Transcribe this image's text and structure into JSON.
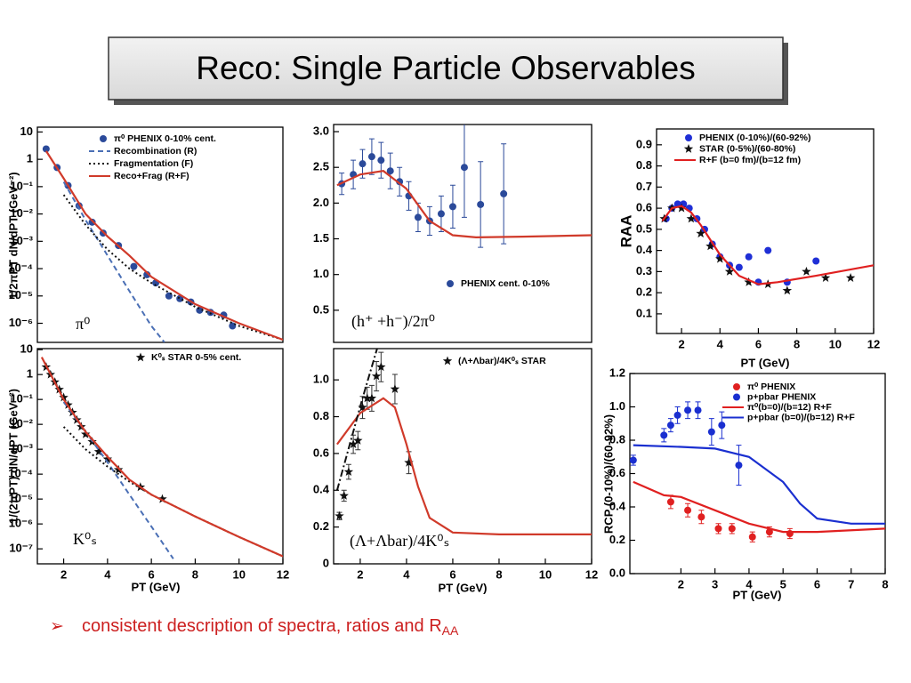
{
  "title": "Reco: Single Particle Observables",
  "bullet": {
    "text": "consistent description of spectra, ratios and R",
    "subscript": "AA"
  },
  "chart_data": [
    {
      "type": "scatter",
      "log": true,
      "xlim": [
        0.8,
        12
      ],
      "ylim": [
        2e-07,
        15
      ],
      "ylabel": "1/2πPT dN/dPT (GeV⁻²)",
      "yticks": [
        10,
        1,
        {
          "value": 0.1,
          "label": "10⁻¹"
        },
        {
          "value": 0.01,
          "label": "10⁻²"
        },
        {
          "value": 0.001,
          "label": "10⁻³"
        },
        {
          "value": 0.0001,
          "label": "10⁻⁴"
        },
        {
          "value": 1e-05,
          "label": "10⁻⁵"
        },
        {
          "value": 1e-06,
          "label": "10⁻⁶"
        }
      ],
      "annotations": [
        "π⁰"
      ],
      "series": [
        {
          "name": "π⁰ PHENIX 0-10% cent.",
          "color": "#2b4a9a",
          "style": "marker",
          "x": [
            1.2,
            1.7,
            2.2,
            2.7,
            3.3,
            3.8,
            4.5,
            5.2,
            5.8,
            6.2,
            6.8,
            7.3,
            7.8,
            8.2,
            8.7,
            9.3,
            9.7
          ],
          "values": [
            2.4,
            0.5,
            0.11,
            0.02,
            0.005,
            0.002,
            0.0007,
            0.00012,
            6e-05,
            3e-05,
            1e-05,
            8e-06,
            6e-06,
            3e-06,
            2.5e-06,
            2e-06,
            8e-07
          ]
        },
        {
          "name": "Recombination (R)",
          "color": "#4a6fb5",
          "style": "dash",
          "x": [
            2,
            3,
            4,
            5,
            6,
            6.6
          ],
          "values": [
            0.15,
            0.006,
            0.0003,
            1.5e-05,
            8e-07,
            2e-07
          ]
        },
        {
          "name": "Fragmentation (F)",
          "color": "#111111",
          "style": "dot",
          "x": [
            2,
            3,
            4,
            5,
            6,
            8,
            10,
            12
          ],
          "values": [
            0.05,
            0.004,
            0.0005,
            0.0001,
            3e-05,
            4e-06,
            8e-07,
            2.5e-07
          ]
        },
        {
          "name": "Reco+Frag (R+F)",
          "color": "#d03a2a",
          "style": "line",
          "x": [
            1.2,
            2,
            3,
            4,
            5,
            6,
            8,
            10,
            12
          ],
          "values": [
            2,
            0.2,
            0.01,
            0.0015,
            0.0003,
            5e-05,
            5e-06,
            1e-06,
            2.5e-07
          ]
        }
      ]
    },
    {
      "type": "scatter",
      "xlim": [
        0.85,
        12
      ],
      "ylim": [
        0.05,
        3.1
      ],
      "yticks": [
        {
          "value": 3,
          "label": "3.0"
        },
        2.5,
        {
          "value": 2,
          "label": "2.0"
        },
        1.5,
        {
          "value": 1,
          "label": "1.0"
        },
        0.5
      ],
      "annotations": [
        "(h⁺ +h⁻)/2π⁰"
      ],
      "series": [
        {
          "name": "PHENIX cent. 0-10%",
          "color": "#2b4a9a",
          "style": "marker",
          "x": [
            1.2,
            1.7,
            2.1,
            2.5,
            2.9,
            3.3,
            3.7,
            4.1,
            4.5,
            5,
            5.5,
            6,
            6.5,
            7.2,
            8.2
          ],
          "values": [
            2.27,
            2.4,
            2.55,
            2.65,
            2.6,
            2.45,
            2.3,
            2.1,
            1.8,
            1.75,
            1.85,
            1.95,
            2.5,
            1.98,
            2.13
          ],
          "errors": [
            0.15,
            0.2,
            0.2,
            0.25,
            0.25,
            0.25,
            0.2,
            0.2,
            0.2,
            0.2,
            0.25,
            0.3,
            0.7,
            0.6,
            0.7
          ]
        },
        {
          "color": "#d03a2a",
          "style": "line",
          "x": [
            1,
            2,
            3,
            4,
            5,
            6,
            7,
            9,
            12
          ],
          "values": [
            2.25,
            2.4,
            2.45,
            2.2,
            1.75,
            1.55,
            1.52,
            1.53,
            1.55
          ]
        }
      ]
    },
    {
      "type": "scatter",
      "xlim": [
        0.7,
        12
      ],
      "ylim": [
        0.007,
        0.975
      ],
      "xlabel": "PT (GeV)",
      "ylabel": "RAA",
      "xticks": [
        2,
        4,
        6,
        8,
        10,
        12
      ],
      "yticks": [
        0.9,
        0.8,
        0.7,
        0.6,
        0.5,
        0.4,
        0.3,
        0.2,
        0.1
      ],
      "series": [
        {
          "name": "PHENIX (0-10%)/(60-92%)",
          "color": "#1f2fd6",
          "style": "marker",
          "x": [
            1.2,
            1.5,
            1.8,
            2.1,
            2.4,
            2.8,
            3.2,
            3.6,
            4,
            4.5,
            5,
            5.5,
            6,
            6.5,
            7.5,
            9
          ],
          "values": [
            0.55,
            0.6,
            0.62,
            0.62,
            0.6,
            0.55,
            0.5,
            0.43,
            0.37,
            0.33,
            0.32,
            0.37,
            0.25,
            0.4,
            0.25,
            0.35
          ]
        },
        {
          "name": "STAR (0-5%)/(60-80%)",
          "color": "#111111",
          "style": "star",
          "x": [
            1.1,
            1.5,
            2,
            2.5,
            3,
            3.5,
            4,
            4.5,
            5.5,
            6.5,
            7.5,
            8.5,
            9.5,
            10.8
          ],
          "values": [
            0.55,
            0.6,
            0.6,
            0.55,
            0.48,
            0.42,
            0.36,
            0.3,
            0.25,
            0.24,
            0.21,
            0.3,
            0.27,
            0.27
          ]
        },
        {
          "name": "R+F (b=0 fm)/(b=12 fm)",
          "color": "#e02020",
          "style": "line",
          "x": [
            1,
            1.5,
            2,
            2.5,
            3,
            4,
            5,
            6,
            7,
            9,
            12
          ],
          "values": [
            0.54,
            0.6,
            0.61,
            0.58,
            0.52,
            0.38,
            0.28,
            0.24,
            0.25,
            0.28,
            0.33
          ]
        }
      ]
    },
    {
      "type": "scatter",
      "log": true,
      "xlim": [
        0.8,
        12
      ],
      "ylim": [
        2.5e-08,
        11
      ],
      "xlabel": "PT (GeV)",
      "ylabel": "1/(2πPT) dN/dPT (GeV⁻²)",
      "xticks": [
        2,
        4,
        6,
        8,
        10,
        12
      ],
      "yticks": [
        10,
        1,
        {
          "value": 0.1,
          "label": "10⁻¹"
        },
        {
          "value": 0.01,
          "label": "10⁻²"
        },
        {
          "value": 0.001,
          "label": "10⁻³"
        },
        {
          "value": 0.0001,
          "label": "10⁻⁴"
        },
        {
          "value": 1e-05,
          "label": "10⁻⁵"
        },
        {
          "value": 1e-06,
          "label": "10⁻⁶"
        },
        {
          "value": 1e-07,
          "label": "10⁻⁷"
        }
      ],
      "annotations": [
        "K⁰ₛ"
      ],
      "series": [
        {
          "name": "K⁰ₛ STAR 0-5% cent.",
          "color": "#111111",
          "style": "star",
          "x": [
            1.2,
            1.4,
            1.6,
            1.8,
            2,
            2.2,
            2.4,
            2.6,
            2.8,
            3,
            3.3,
            3.6,
            4,
            4.5,
            5.5,
            6.5
          ],
          "values": [
            2,
            1,
            0.5,
            0.25,
            0.12,
            0.06,
            0.03,
            0.015,
            0.008,
            0.004,
            0.002,
            0.0008,
            0.0004,
            0.00015,
            3e-05,
            1e-05
          ]
        },
        {
          "color": "#4a6fb5",
          "style": "dash",
          "x": [
            2,
            3,
            4,
            5,
            6,
            7
          ],
          "values": [
            0.08,
            0.005,
            0.0003,
            1.5e-05,
            8e-07,
            4e-08
          ]
        },
        {
          "color": "#111111",
          "style": "dot",
          "x": [
            2,
            3,
            4,
            5,
            6,
            8,
            10,
            12
          ],
          "values": [
            0.008,
            0.001,
            0.0002,
            5e-05,
            1.5e-05,
            2e-06,
            3e-07,
            5e-08
          ]
        },
        {
          "color": "#d03a2a",
          "style": "line",
          "x": [
            1,
            2,
            3,
            4,
            5,
            6,
            8,
            10,
            12
          ],
          "values": [
            5,
            0.1,
            0.005,
            0.0005,
            6e-05,
            1.5e-05,
            2e-06,
            3e-07,
            5e-08
          ]
        }
      ]
    },
    {
      "type": "scatter",
      "xlim": [
        0.85,
        12
      ],
      "ylim": [
        0,
        1.17
      ],
      "xlabel": "PT (GeV)",
      "xticks": [
        2,
        4,
        6,
        8,
        10,
        12
      ],
      "yticks": [
        {
          "value": 1,
          "label": "1.0"
        },
        0.8,
        0.6,
        0.4,
        0.2,
        0
      ],
      "annotations": [
        "(Λ+Λbar)/4K⁰ₛ"
      ],
      "series": [
        {
          "name": "(Λ+Λbar)/4K⁰ₛ STAR",
          "color": "#111111",
          "style": "star",
          "x": [
            1.1,
            1.3,
            1.5,
            1.7,
            1.9,
            2.1,
            2.3,
            2.5,
            2.7,
            2.9,
            3.5,
            4.1
          ],
          "values": [
            0.26,
            0.37,
            0.5,
            0.65,
            0.67,
            0.85,
            0.9,
            0.9,
            1.02,
            1.07,
            0.95,
            0.55
          ],
          "errors": [
            0.02,
            0.03,
            0.04,
            0.05,
            0.05,
            0.06,
            0.06,
            0.07,
            0.08,
            0.08,
            0.08,
            0.06
          ]
        },
        {
          "color": "#d03a2a",
          "style": "line",
          "x": [
            1,
            2,
            3,
            3.5,
            4,
            4.5,
            5,
            6,
            8,
            12
          ],
          "values": [
            0.65,
            0.82,
            0.9,
            0.85,
            0.65,
            0.42,
            0.25,
            0.17,
            0.16,
            0.16
          ]
        },
        {
          "color": "#111111",
          "style": "dashdot",
          "x": [
            1,
            2.1,
            2.8
          ],
          "values": [
            0.4,
            0.9,
            1.2
          ]
        }
      ]
    },
    {
      "type": "scatter",
      "xlim": [
        0.5,
        8
      ],
      "ylim": [
        0,
        1.2
      ],
      "xlabel": "PT (GeV)",
      "ylabel": "RCP (0-10%)/(60-92%)",
      "xticks": [
        2,
        3,
        4,
        5,
        6,
        7,
        8
      ],
      "yticks": [
        1.2,
        {
          "value": 1,
          "label": "1.0"
        },
        0.8,
        0.6,
        0.4,
        0.2,
        {
          "value": 0,
          "label": "0.0"
        }
      ],
      "series": [
        {
          "name": "π⁰ PHENIX",
          "color": "#e02020",
          "style": "marker",
          "x": [
            1.7,
            2.2,
            2.6,
            3.1,
            3.5,
            4.1,
            4.6,
            5.2
          ],
          "values": [
            0.43,
            0.38,
            0.34,
            0.27,
            0.27,
            0.22,
            0.25,
            0.24
          ],
          "errors": [
            0.04,
            0.04,
            0.04,
            0.03,
            0.03,
            0.03,
            0.03,
            0.03
          ]
        },
        {
          "name": "p+pbar PHENIX",
          "color": "#1a2fd0",
          "style": "marker",
          "x": [
            0.6,
            1.5,
            1.7,
            1.9,
            2.2,
            2.5,
            2.9,
            3.2,
            3.7
          ],
          "values": [
            0.68,
            0.83,
            0.89,
            0.95,
            0.98,
            0.98,
            0.85,
            0.89,
            0.65
          ],
          "errors": [
            0.03,
            0.04,
            0.04,
            0.05,
            0.05,
            0.05,
            0.08,
            0.08,
            0.12
          ]
        },
        {
          "name": "π⁰(b=0)/(b=12) R+F",
          "color": "#e02020",
          "style": "line",
          "x": [
            0.6,
            1.5,
            2,
            3,
            4,
            5,
            6,
            8
          ],
          "values": [
            0.55,
            0.47,
            0.46,
            0.38,
            0.3,
            0.25,
            0.25,
            0.27
          ]
        },
        {
          "name": "p+pbar (b=0)/(b=12) R+F",
          "color": "#1a2fd0",
          "style": "line",
          "x": [
            0.6,
            2,
            3,
            4,
            5,
            5.5,
            6,
            7,
            8
          ],
          "values": [
            0.77,
            0.76,
            0.75,
            0.7,
            0.55,
            0.42,
            0.33,
            0.3,
            0.3
          ]
        }
      ]
    }
  ]
}
